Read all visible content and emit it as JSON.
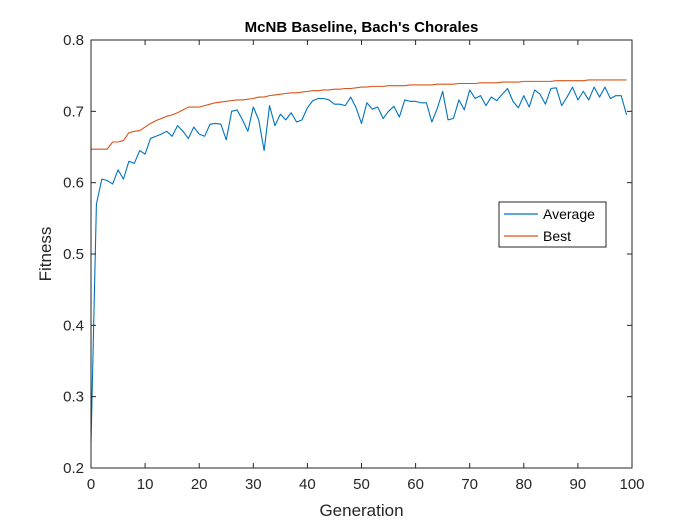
{
  "chart_data": {
    "type": "line",
    "title": "McNB Baseline, Bach's Chorales",
    "xlabel": "Generation",
    "ylabel": "Fitness",
    "xlim": [
      0,
      100
    ],
    "ylim": [
      0.2,
      0.8
    ],
    "xticks": [
      0,
      10,
      20,
      30,
      40,
      50,
      60,
      70,
      80,
      90,
      100
    ],
    "yticks": [
      0.2,
      0.3,
      0.4,
      0.5,
      0.6,
      0.7,
      0.8
    ],
    "xtick_labels": [
      "0",
      "10",
      "20",
      "30",
      "40",
      "50",
      "60",
      "70",
      "80",
      "90",
      "100"
    ],
    "ytick_labels": [
      "0.2",
      "0.3",
      "0.4",
      "0.5",
      "0.6",
      "0.7",
      "0.8"
    ],
    "grid": false,
    "legend_position": "right",
    "x": [
      0,
      1,
      2,
      3,
      4,
      5,
      6,
      7,
      8,
      9,
      10,
      11,
      12,
      13,
      14,
      15,
      16,
      17,
      18,
      19,
      20,
      21,
      22,
      23,
      24,
      25,
      26,
      27,
      28,
      29,
      30,
      31,
      32,
      33,
      34,
      35,
      36,
      37,
      38,
      39,
      40,
      41,
      42,
      43,
      44,
      45,
      46,
      47,
      48,
      49,
      50,
      51,
      52,
      53,
      54,
      55,
      56,
      57,
      58,
      59,
      60,
      61,
      62,
      63,
      64,
      65,
      66,
      67,
      68,
      69,
      70,
      71,
      72,
      73,
      74,
      75,
      76,
      77,
      78,
      79,
      80,
      81,
      82,
      83,
      84,
      85,
      86,
      87,
      88,
      89,
      90,
      91,
      92,
      93,
      94,
      95,
      96,
      97,
      98,
      99
    ],
    "series": [
      {
        "name": "Average",
        "color": "#0072BD",
        "values": [
          0.235,
          0.57,
          0.605,
          0.603,
          0.598,
          0.618,
          0.605,
          0.63,
          0.627,
          0.645,
          0.64,
          0.662,
          0.665,
          0.668,
          0.672,
          0.665,
          0.68,
          0.672,
          0.662,
          0.678,
          0.668,
          0.665,
          0.682,
          0.683,
          0.682,
          0.66,
          0.7,
          0.702,
          0.688,
          0.672,
          0.706,
          0.688,
          0.645,
          0.708,
          0.68,
          0.696,
          0.688,
          0.698,
          0.685,
          0.688,
          0.705,
          0.715,
          0.718,
          0.718,
          0.716,
          0.71,
          0.71,
          0.708,
          0.72,
          0.705,
          0.683,
          0.712,
          0.703,
          0.706,
          0.69,
          0.7,
          0.707,
          0.692,
          0.716,
          0.714,
          0.714,
          0.712,
          0.712,
          0.685,
          0.704,
          0.728,
          0.688,
          0.69,
          0.716,
          0.702,
          0.73,
          0.718,
          0.722,
          0.708,
          0.72,
          0.715,
          0.724,
          0.732,
          0.714,
          0.705,
          0.722,
          0.706,
          0.73,
          0.724,
          0.71,
          0.732,
          0.733,
          0.708,
          0.72,
          0.734,
          0.716,
          0.728,
          0.716,
          0.734,
          0.72,
          0.734,
          0.718,
          0.722,
          0.722,
          0.695
        ]
      },
      {
        "name": "Best",
        "color": "#D95319",
        "values": [
          0.647,
          0.647,
          0.647,
          0.647,
          0.657,
          0.657,
          0.659,
          0.67,
          0.672,
          0.673,
          0.678,
          0.683,
          0.687,
          0.69,
          0.693,
          0.695,
          0.698,
          0.702,
          0.706,
          0.706,
          0.706,
          0.708,
          0.71,
          0.712,
          0.713,
          0.714,
          0.715,
          0.716,
          0.716,
          0.717,
          0.718,
          0.72,
          0.72,
          0.722,
          0.723,
          0.724,
          0.725,
          0.726,
          0.726,
          0.727,
          0.728,
          0.729,
          0.729,
          0.73,
          0.73,
          0.731,
          0.731,
          0.732,
          0.732,
          0.733,
          0.734,
          0.734,
          0.735,
          0.735,
          0.735,
          0.736,
          0.736,
          0.736,
          0.736,
          0.737,
          0.737,
          0.737,
          0.737,
          0.737,
          0.738,
          0.738,
          0.738,
          0.738,
          0.739,
          0.739,
          0.739,
          0.739,
          0.74,
          0.74,
          0.74,
          0.74,
          0.741,
          0.741,
          0.741,
          0.741,
          0.742,
          0.742,
          0.742,
          0.742,
          0.742,
          0.742,
          0.743,
          0.743,
          0.743,
          0.743,
          0.743,
          0.743,
          0.744,
          0.744,
          0.744,
          0.744,
          0.744,
          0.744,
          0.744,
          0.744
        ]
      }
    ]
  }
}
